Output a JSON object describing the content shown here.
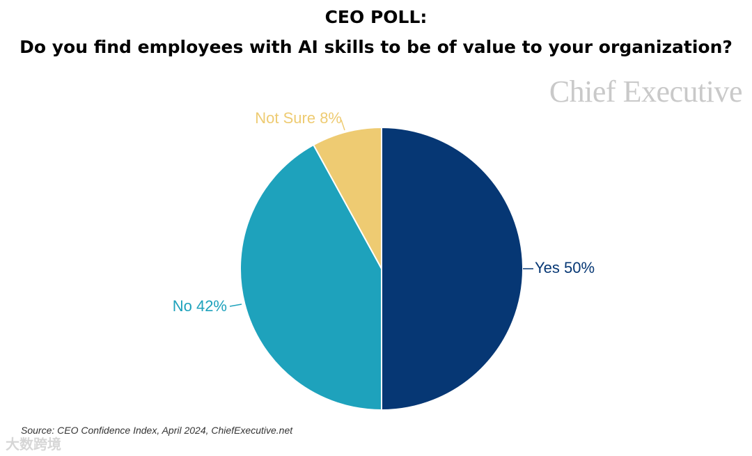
{
  "header": {
    "title_line1": "CEO POLL:",
    "title_line2": "Do you find employees with AI skills to be of value to your organization?"
  },
  "brand": {
    "name": "Chief Executive"
  },
  "chart_data": {
    "type": "pie",
    "title": "CEO POLL: Do you find employees with AI skills to be of value to your organization?",
    "slices": [
      {
        "label": "Yes",
        "value": 50,
        "display": "Yes 50%",
        "color": "#063774"
      },
      {
        "label": "No",
        "value": 42,
        "display": "No 42%",
        "color": "#1ea2bc"
      },
      {
        "label": "Not Sure",
        "value": 8,
        "display": "Not Sure 8%",
        "color": "#eecb72"
      }
    ],
    "unit": "%"
  },
  "footer": {
    "source": "Source: CEO Confidence Index, April 2024, ChiefExecutive.net",
    "watermark": "大数跨境"
  }
}
